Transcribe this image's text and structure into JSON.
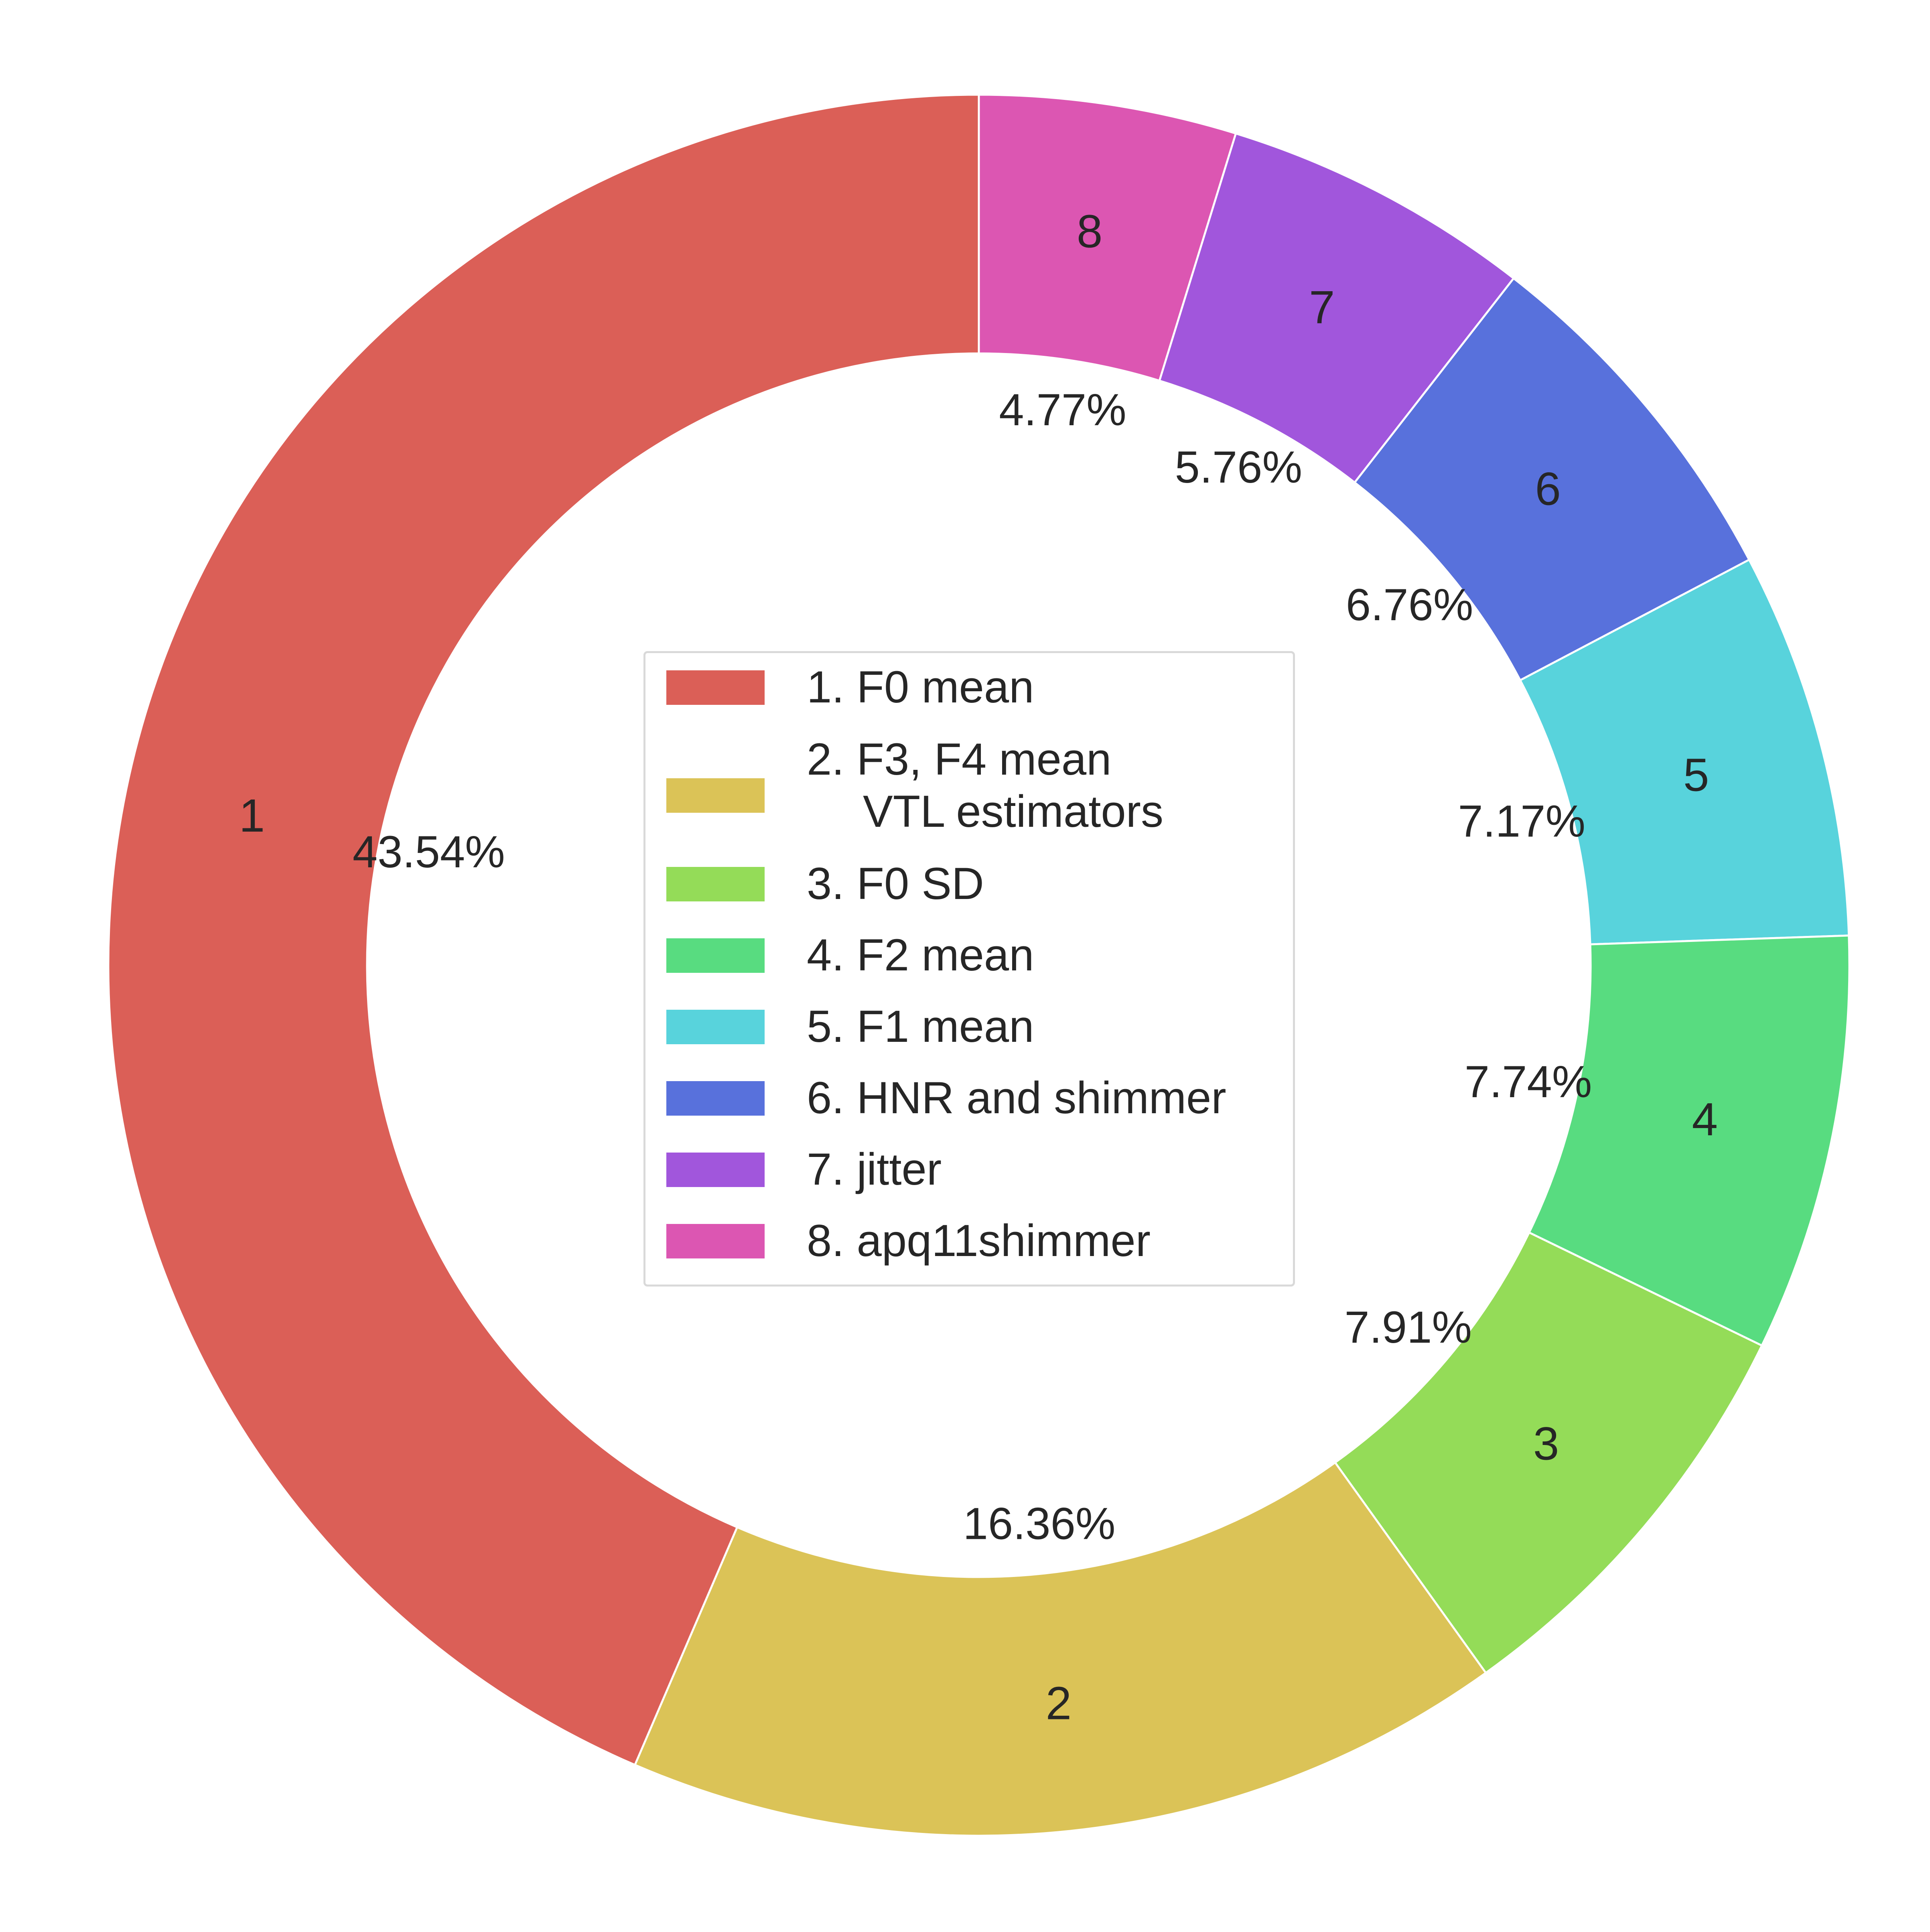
{
  "chart_data": {
    "type": "pie",
    "donut": true,
    "start": "top, clockwise",
    "slices": [
      {
        "id": "8",
        "label": "8. apq11shimmer",
        "value": 4.77,
        "pct_label": "4.77%",
        "color": "#dc56b2"
      },
      {
        "id": "7",
        "label": "7. jitter",
        "value": 5.76,
        "pct_label": "5.76%",
        "color": "#a156dc"
      },
      {
        "id": "6",
        "label": "6. HNR and shimmer",
        "value": 6.76,
        "pct_label": "6.76%",
        "color": "#5871dc"
      },
      {
        "id": "5",
        "label": "5. F1 mean",
        "value": 7.17,
        "pct_label": "7.17%",
        "color": "#58d3dc"
      },
      {
        "id": "4",
        "label": "4. F2 mean",
        "value": 7.74,
        "pct_label": "7.74%",
        "color": "#58dc80"
      },
      {
        "id": "3",
        "label": "3. F0 SD",
        "value": 7.91,
        "pct_label": "7.91%",
        "color": "#94dc58"
      },
      {
        "id": "2",
        "label": "2. F3, F4 mean",
        "label_line2": "VTL estimators",
        "value": 16.36,
        "pct_label": "16.36%",
        "color": "#dbc357"
      },
      {
        "id": "1",
        "label": "1. F0 mean",
        "value": 43.54,
        "pct_label": "43.54%",
        "color": "#db5f57"
      }
    ],
    "legend": {
      "placement": "center",
      "entries": [
        {
          "label": "1. F0 mean",
          "color": "#db5f57"
        },
        {
          "label": "2. F3, F4 mean",
          "label_line2": "VTL estimators",
          "color": "#dbc357"
        },
        {
          "label": "3. F0 SD",
          "color": "#94dc58"
        },
        {
          "label": "4. F2 mean",
          "color": "#58dc80"
        },
        {
          "label": "5. F1 mean",
          "color": "#58d3dc"
        },
        {
          "label": "6. HNR and shimmer",
          "color": "#5871dc"
        },
        {
          "label": "7. jitter",
          "color": "#a156dc"
        },
        {
          "label": "8. apq11shimmer",
          "color": "#dc56b2"
        }
      ]
    }
  }
}
